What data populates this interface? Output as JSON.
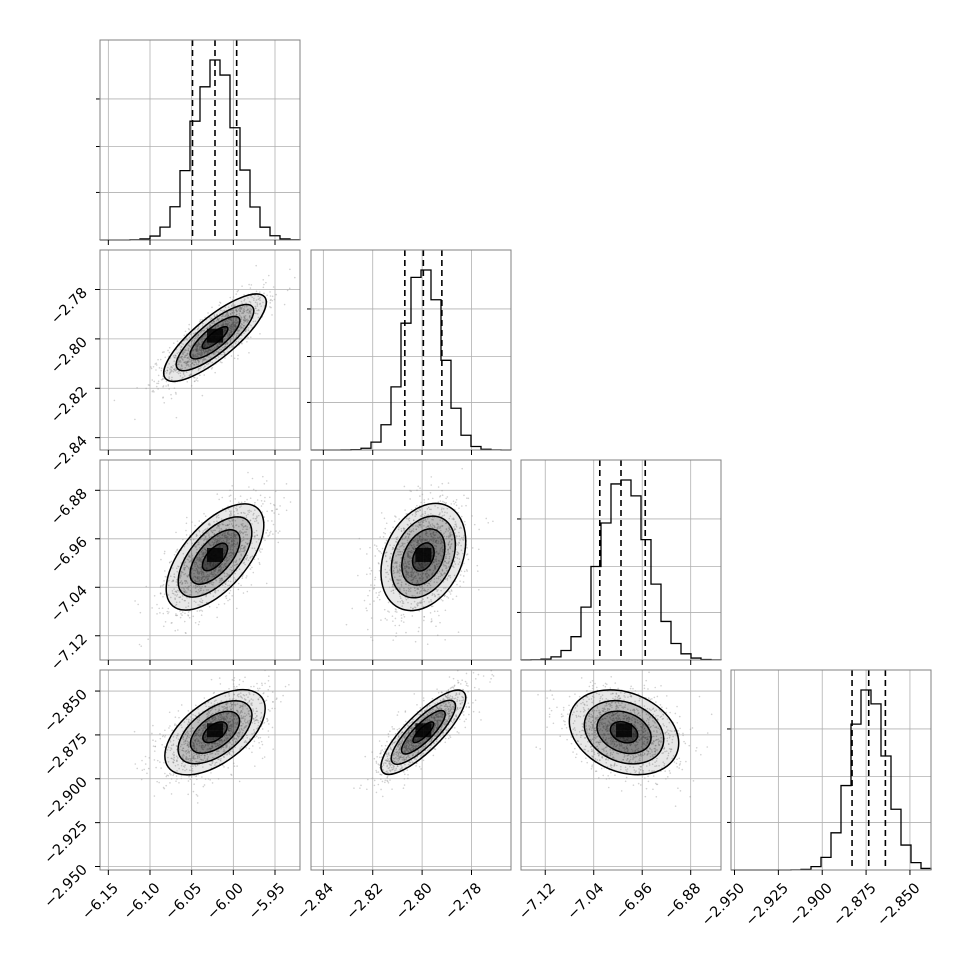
{
  "chart_data": {
    "type": "corner",
    "title": "",
    "parameters": [
      {
        "label": "",
        "range": [
          -6.16,
          -5.92
        ],
        "ticks": [
          -6.15,
          -6.1,
          -6.05,
          -6.0,
          -5.95
        ],
        "tick_labels": [
          "−6.15",
          "−6.10",
          "−6.05",
          "−6.00",
          "−5.95"
        ],
        "mean": -6.022,
        "std": 0.026,
        "quantiles": [
          -6.049,
          -6.022,
          -5.996
        ]
      },
      {
        "label": "",
        "range": [
          -2.845,
          -2.764
        ],
        "ticks": [
          -2.84,
          -2.82,
          -2.8,
          -2.78
        ],
        "tick_labels": [
          "−2.84",
          "−2.82",
          "−2.80",
          "−2.78"
        ],
        "mean": -2.7995,
        "std": 0.0075,
        "quantiles": [
          -2.807,
          -2.7995,
          -2.792
        ]
      },
      {
        "label": "",
        "range": [
          -7.16,
          -6.83
        ],
        "ticks": [
          -7.12,
          -7.04,
          -6.96,
          -6.88
        ],
        "tick_labels": [
          "−7.12",
          "−7.04",
          "−6.96",
          "−6.88"
        ],
        "mean": -6.99,
        "std": 0.039,
        "quantiles": [
          -7.03,
          -6.995,
          -6.955
        ]
      },
      {
        "label": "",
        "range": [
          -2.952,
          -2.838
        ],
        "ticks": [
          -2.95,
          -2.925,
          -2.9,
          -2.875,
          -2.85
        ],
        "tick_labels": [
          "−2.950",
          "−2.925",
          "−2.900",
          "−2.875",
          "−2.850"
        ],
        "mean": -2.8735,
        "std": 0.0105,
        "quantiles": [
          -2.883,
          -2.8735,
          -2.864
        ]
      }
    ],
    "correlations": [
      {
        "pair": [
          1,
          0
        ],
        "rho": 0.8
      },
      {
        "pair": [
          2,
          0
        ],
        "rho": 0.62
      },
      {
        "pair": [
          2,
          1
        ],
        "rho": 0.3
      },
      {
        "pair": [
          3,
          0
        ],
        "rho": 0.55
      },
      {
        "pair": [
          3,
          1
        ],
        "rho": 0.82
      },
      {
        "pair": [
          3,
          2
        ],
        "rho": -0.25
      }
    ],
    "contour_levels_sigma": [
      0.5,
      1.0,
      1.5,
      2.0
    ],
    "grid": true,
    "colors": {
      "line": "#000000",
      "grid": "#b0b0b0",
      "points": "#9a9a9a",
      "density": "#000000",
      "frame": "#808080"
    }
  }
}
